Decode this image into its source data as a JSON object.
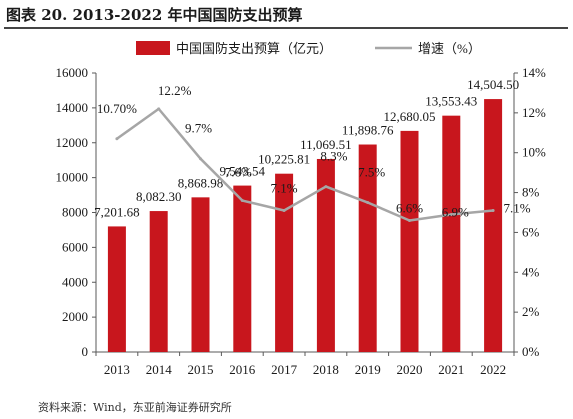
{
  "figure": {
    "title": "图表 20. 2013-2022 年中国国防支出预算",
    "source": "资料来源：Wind，东亚前海证券研究所"
  },
  "colors": {
    "bar": "#c8161d",
    "line": "#a6a6a6",
    "text": "#1a1a1a",
    "axis": "#595959"
  },
  "chart_data": {
    "type": "bar",
    "categories": [
      "2013",
      "2014",
      "2015",
      "2016",
      "2017",
      "2018",
      "2019",
      "2020",
      "2021",
      "2022"
    ],
    "series": [
      {
        "name": "中国国防支出预算（亿元）",
        "type": "bar",
        "axis": "left",
        "values": [
          7201.68,
          8082.3,
          8868.98,
          9543.54,
          10225.81,
          11069.51,
          11898.76,
          12680.05,
          13553.43,
          14504.5
        ],
        "labels": [
          "7,201.68",
          "8,082.30",
          "8,868.98",
          "9,543.54",
          "10,225.81",
          "11,069.51",
          "11,898.76",
          "12,680.05",
          "13,553.43",
          "14,504.50"
        ]
      },
      {
        "name": "增速（%）",
        "type": "line",
        "axis": "right",
        "values": [
          10.7,
          12.2,
          9.7,
          7.6,
          7.1,
          8.3,
          7.5,
          6.6,
          6.9,
          7.1
        ],
        "labels": [
          "10.70%",
          "12.2%",
          "9.7%",
          "7.6%",
          "7.1%",
          "8.3%",
          "7.5%",
          "6.6%",
          "6.9%",
          "7.1%"
        ]
      }
    ],
    "y_left": {
      "min": 0,
      "max": 16000,
      "ticks": [
        "0",
        "2000",
        "4000",
        "6000",
        "8000",
        "10000",
        "12000",
        "14000",
        "16000"
      ]
    },
    "y_right": {
      "min": 0,
      "max": 14,
      "ticks": [
        "0%",
        "2%",
        "4%",
        "6%",
        "8%",
        "10%",
        "12%",
        "14%"
      ]
    },
    "legend_position": "top",
    "grid": false
  }
}
